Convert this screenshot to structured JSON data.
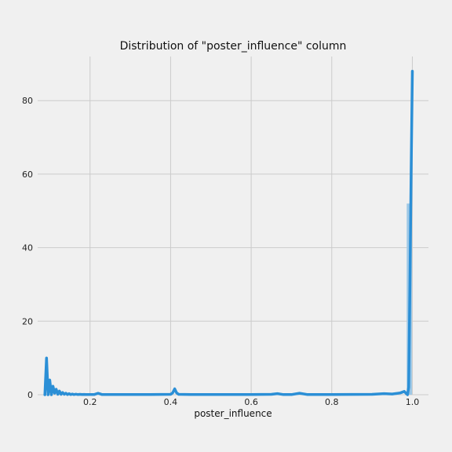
{
  "chart_data": {
    "type": "area",
    "title": "Distribution of \"poster_influence\" column",
    "xlabel": "poster_influence",
    "ylabel": "",
    "xlim": [
      0.07,
      1.04
    ],
    "ylim": [
      0,
      92
    ],
    "x_ticks": [
      0.2,
      0.4,
      0.6,
      0.8,
      1.0
    ],
    "x_tick_labels": [
      "0.2",
      "0.4",
      "0.6",
      "0.8",
      "1.0"
    ],
    "y_ticks": [
      0,
      20,
      40,
      60,
      80
    ],
    "y_tick_labels": [
      "0",
      "20",
      "40",
      "60",
      "80"
    ],
    "grid": true,
    "histogram_bars": [
      {
        "x0": 0.986,
        "x1": 0.999,
        "value": 52
      }
    ],
    "density_curve": {
      "x": [
        0.088,
        0.092,
        0.096,
        0.1,
        0.104,
        0.108,
        0.112,
        0.116,
        0.12,
        0.124,
        0.128,
        0.132,
        0.136,
        0.14,
        0.144,
        0.148,
        0.152,
        0.156,
        0.16,
        0.165,
        0.17,
        0.175,
        0.18,
        0.185,
        0.19,
        0.2,
        0.21,
        0.22,
        0.23,
        0.24,
        0.25,
        0.3,
        0.35,
        0.4,
        0.405,
        0.41,
        0.415,
        0.42,
        0.45,
        0.5,
        0.6,
        0.65,
        0.665,
        0.68,
        0.7,
        0.72,
        0.74,
        0.8,
        0.9,
        0.93,
        0.95,
        0.97,
        0.98,
        0.985,
        0.988,
        0.991,
        0.994,
        0.997,
        1.0
      ],
      "y": [
        0,
        10,
        0,
        4,
        0,
        2.3,
        0.4,
        1.5,
        0.1,
        1.0,
        0.1,
        0.6,
        0.1,
        0.4,
        0.05,
        0.3,
        0.05,
        0.2,
        0.05,
        0.15,
        0.05,
        0.1,
        0.05,
        0.08,
        0.05,
        0.05,
        0.05,
        0.4,
        0.05,
        0.05,
        0.05,
        0.05,
        0.05,
        0.1,
        0.5,
        1.6,
        0.5,
        0.1,
        0.05,
        0.05,
        0.05,
        0.1,
        0.3,
        0.05,
        0.05,
        0.4,
        0.05,
        0.05,
        0.1,
        0.3,
        0.2,
        0.5,
        0.9,
        0.3,
        0,
        2,
        30,
        60,
        88
      ]
    },
    "colors": {
      "line": "#2b8fd6",
      "bar": "#9ec8e6",
      "grid": "#cbcbcb",
      "background": "#f0f0f0"
    }
  }
}
